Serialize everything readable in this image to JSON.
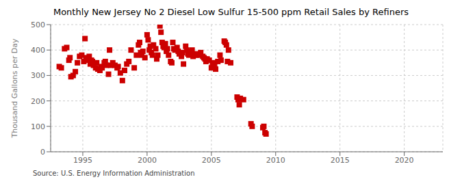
{
  "chart_data": {
    "type": "scatter",
    "title": "Monthly New Jersey No 2 Diesel Low Sulfur 15-500 ppm Retail Sales by Refiners",
    "ylabel": "Thousand Gallons per Day",
    "annotations": [
      "Source: U.S. Energy Information Administration"
    ],
    "color": "#cc0000",
    "marker": "square",
    "grid": true,
    "xlim": [
      1992.5,
      2023
    ],
    "ylim": [
      0,
      500
    ],
    "xticks": [
      1995,
      2000,
      2005,
      2010,
      2015,
      2020
    ],
    "yticks": [
      0,
      100,
      200,
      300,
      400,
      500
    ],
    "x": [
      1993.17,
      1993.33,
      1993.58,
      1993.75,
      1993.92,
      1994.0,
      1994.08,
      1994.25,
      1994.42,
      1994.58,
      1994.75,
      1994.92,
      1995.08,
      1995.17,
      1995.25,
      1995.42,
      1995.5,
      1995.58,
      1995.67,
      1995.75,
      1995.83,
      1996.0,
      1996.08,
      1996.17,
      1996.33,
      1996.42,
      1996.5,
      1996.67,
      1996.75,
      1996.83,
      1997.0,
      1997.08,
      1997.17,
      1997.33,
      1997.5,
      1997.67,
      1997.75,
      1997.92,
      1998.08,
      1998.25,
      1998.42,
      1998.58,
      1998.75,
      1999.0,
      1999.17,
      1999.33,
      1999.42,
      1999.5,
      1999.58,
      1999.67,
      1999.83,
      2000.0,
      2000.08,
      2000.17,
      2000.25,
      2000.33,
      2000.42,
      2000.5,
      2000.67,
      2000.75,
      2000.83,
      2001.0,
      2001.08,
      2001.17,
      2001.25,
      2001.33,
      2001.42,
      2001.5,
      2001.58,
      2001.67,
      2001.83,
      2001.92,
      2002.0,
      2002.08,
      2002.17,
      2002.33,
      2002.42,
      2002.5,
      2002.67,
      2002.75,
      2002.83,
      2003.0,
      2003.08,
      2003.17,
      2003.25,
      2003.33,
      2003.5,
      2003.58,
      2003.67,
      2003.83,
      2004.0,
      2004.08,
      2004.17,
      2004.33,
      2004.42,
      2004.5,
      2004.58,
      2004.67,
      2004.83,
      2005.0,
      2005.08,
      2005.17,
      2005.25,
      2005.33,
      2005.5,
      2005.67,
      2005.75,
      2006.0,
      2006.08,
      2006.17,
      2006.25,
      2006.33,
      2006.5,
      2007.0,
      2007.08,
      2007.17,
      2007.25,
      2007.5,
      2008.08,
      2008.17,
      2009.0,
      2009.08,
      2009.17,
      2009.25
    ],
    "values": [
      335,
      330,
      405,
      410,
      360,
      370,
      295,
      300,
      315,
      350,
      375,
      380,
      355,
      445,
      370,
      360,
      375,
      345,
      360,
      355,
      340,
      330,
      350,
      325,
      320,
      335,
      330,
      350,
      355,
      340,
      305,
      400,
      340,
      350,
      340,
      330,
      335,
      310,
      280,
      320,
      345,
      355,
      400,
      330,
      380,
      420,
      430,
      390,
      380,
      395,
      370,
      460,
      440,
      400,
      415,
      390,
      380,
      420,
      405,
      365,
      380,
      495,
      470,
      430,
      415,
      410,
      425,
      395,
      405,
      380,
      355,
      350,
      430,
      405,
      400,
      410,
      395,
      385,
      375,
      390,
      345,
      415,
      400,
      385,
      380,
      395,
      400,
      375,
      385,
      380,
      380,
      385,
      390,
      375,
      370,
      365,
      355,
      365,
      360,
      330,
      345,
      350,
      340,
      325,
      355,
      380,
      360,
      435,
      430,
      420,
      355,
      400,
      350,
      215,
      205,
      185,
      210,
      205,
      110,
      100,
      95,
      100,
      75,
      70
    ]
  }
}
